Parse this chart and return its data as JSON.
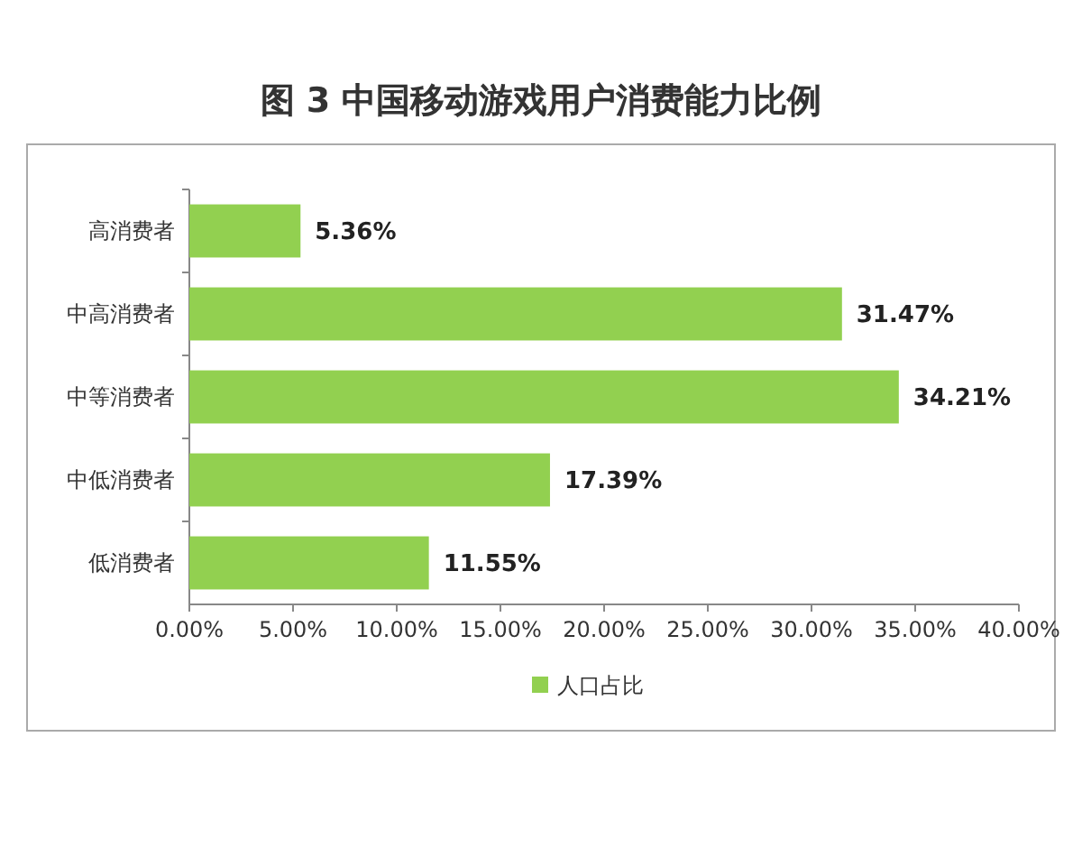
{
  "chart_data": {
    "type": "bar",
    "orientation": "horizontal",
    "title": "图 3  中国移动游戏用户消费能力比例",
    "categories": [
      "高消费者",
      "中高消费者",
      "中等消费者",
      "中低消费者",
      "低消费者"
    ],
    "series": [
      {
        "name": "人口占比",
        "color": "#92d050",
        "values": [
          5.36,
          31.47,
          34.21,
          17.39,
          11.55
        ],
        "value_labels": [
          "5.36%",
          "31.47%",
          "34.21%",
          "17.39%",
          "11.55%"
        ]
      }
    ],
    "xlim": [
      0,
      40
    ],
    "xticks": [
      {
        "value": 0,
        "label": "0.00%"
      },
      {
        "value": 5,
        "label": "5.00%"
      },
      {
        "value": 10,
        "label": "10.00%"
      },
      {
        "value": 15,
        "label": "15.00%"
      },
      {
        "value": 20,
        "label": "20.00%"
      },
      {
        "value": 25,
        "label": "25.00%"
      },
      {
        "value": 30,
        "label": "30.00%"
      },
      {
        "value": 35,
        "label": "35.00%"
      },
      {
        "value": 40,
        "label": "40.00%"
      }
    ],
    "legend": "bottom"
  }
}
